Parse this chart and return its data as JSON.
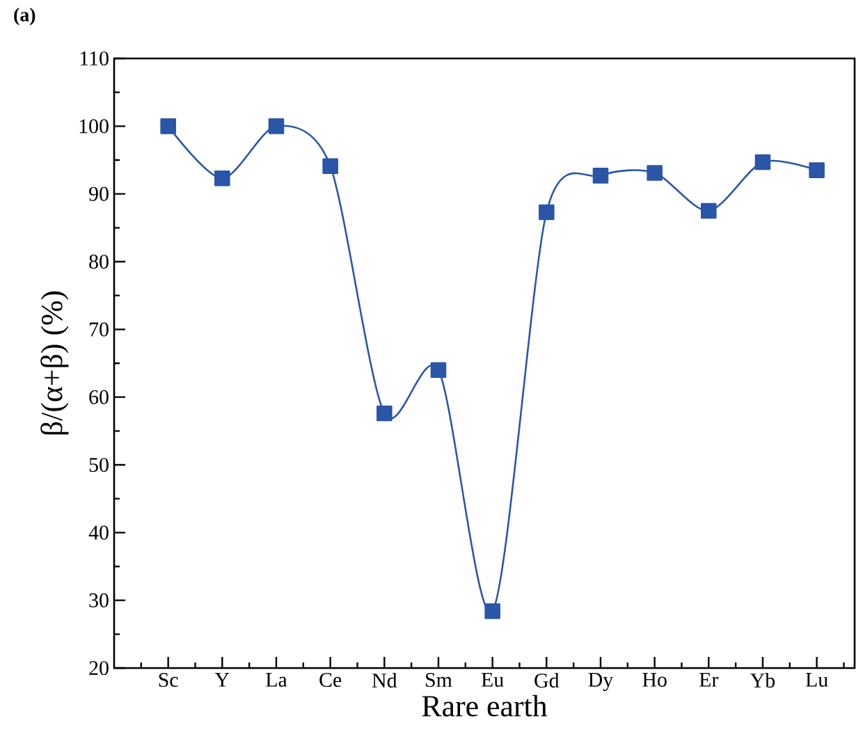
{
  "chart_data": {
    "type": "line",
    "xlabel": "Rare earth",
    "ylabel": "β/(α+β) (%)",
    "annotations": [
      "(a)"
    ],
    "categories": [
      "Sc",
      "Y",
      "La",
      "Ce",
      "Nd",
      "Sm",
      "Eu",
      "Gd",
      "Dy",
      "Ho",
      "Er",
      "Yb",
      "Lu"
    ],
    "series": [
      {
        "color": "#2a56a8",
        "values": [
          100,
          92.3,
          100,
          94.1,
          57.6,
          64.0,
          28.4,
          87.3,
          92.7,
          93.1,
          87.5,
          94.7,
          93.5
        ]
      }
    ],
    "ylim": [
      20,
      110
    ],
    "yticks": [
      20,
      30,
      40,
      50,
      60,
      70,
      80,
      90,
      100,
      110
    ],
    "marker": "square",
    "line_style": "solid"
  }
}
